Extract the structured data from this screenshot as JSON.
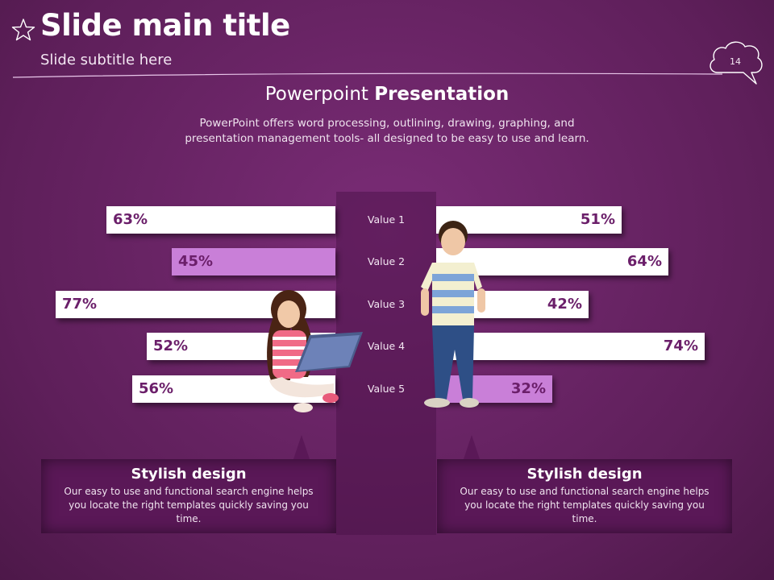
{
  "header": {
    "title": "Slide main title",
    "subtitle": "Slide subtitle here",
    "page_number": "14"
  },
  "intro": {
    "title_light": "Powerpoint ",
    "title_bold": "Presentation",
    "description": "PowerPoint offers word processing, outlining, drawing, graphing, and presentation management tools- all designed to be easy to use and learn."
  },
  "chart_data": {
    "type": "bar",
    "categories": [
      "Value 1",
      "Value 2",
      "Value 3",
      "Value 4",
      "Value 5"
    ],
    "series": [
      {
        "values": [
          63,
          45,
          77,
          52,
          56
        ],
        "labels": [
          "63%",
          "45%",
          "77%",
          "52%",
          "56%"
        ],
        "highlight_index": 1
      },
      {
        "values": [
          51,
          64,
          42,
          74,
          32
        ],
        "labels": [
          "51%",
          "64%",
          "42%",
          "74%",
          "32%"
        ],
        "highlight_index": 4
      }
    ],
    "unit": "%",
    "bar_color": "#ffffff",
    "highlight_color": "#c97fd8",
    "label_color": "#6b1f6a"
  },
  "cards": [
    {
      "title": "Stylish design",
      "text": "Our easy to use and functional search engine helps you locate the right templates quickly saving you time."
    },
    {
      "title": "Stylish design",
      "text": "Our easy to use and functional search engine helps you locate the right templates quickly saving you time."
    }
  ],
  "colors": {
    "background": "#6a2466",
    "panel": "#5a1857",
    "accent": "#c97fd8"
  },
  "icons": {
    "title_icon": "star-outline-icon",
    "page_badge": "cloud-icon"
  }
}
